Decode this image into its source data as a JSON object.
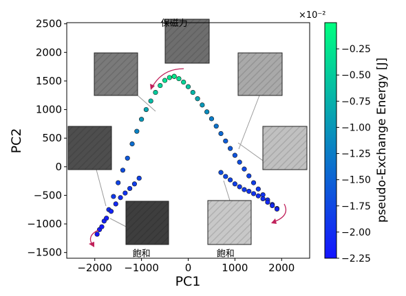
{
  "chart_data": {
    "type": "scatter",
    "xlabel": "PC1",
    "ylabel": "PC2",
    "xlim": [
      -2600,
      2600
    ],
    "ylim": [
      -1600,
      2520
    ],
    "x_ticks": [
      -2000,
      -1000,
      0,
      1000,
      2000
    ],
    "x_tick_labels": [
      "−2000",
      "−1000",
      "0",
      "1000",
      "2000"
    ],
    "y_ticks": [
      -1500,
      -1000,
      -500,
      0,
      500,
      1000,
      1500,
      2000,
      2500
    ],
    "y_tick_labels": [
      "−1500",
      "−1000",
      "−500",
      "0",
      "500",
      "1000",
      "1500",
      "2000",
      "2500"
    ],
    "grid": false,
    "colorbar": {
      "label": "pseudo-Exchange Energy [J]",
      "scale_label": "×10⁻²",
      "range": [
        -2.25,
        0
      ],
      "ticks": [
        -0.25,
        -0.5,
        -0.75,
        -1.0,
        -1.25,
        -1.5,
        -1.75,
        -2.0,
        -2.25
      ],
      "tick_labels": [
        "−0.25",
        "−0.50",
        "−0.75",
        "−1.00",
        "−1.25",
        "−1.50",
        "−1.75",
        "−2.00",
        "−2.25"
      ],
      "colors": [
        "#1414ff",
        "#00ff80"
      ]
    },
    "annotations": [
      {
        "text": "保磁力",
        "x": -300,
        "y": 2460
      },
      {
        "text": "飽和",
        "x": -1000,
        "y": -1570
      },
      {
        "text": "飽和",
        "x": 800,
        "y": -1570
      }
    ],
    "branches": [
      {
        "name": "",
        "x": [
          -1900,
          -1800,
          -1700,
          -1600,
          -1500,
          -1400,
          -1300,
          -1200,
          -1100,
          -1000,
          -900,
          -800,
          -700,
          -600,
          -500,
          -400,
          -300
        ],
        "y": [
          -1100,
          -950,
          -750,
          -520,
          -280,
          -60,
          150,
          400,
          620,
          830,
          1000,
          1150,
          1300,
          1420,
          1510,
          1560,
          1580
        ],
        "energy": [
          -2.2,
          -2.1,
          -2.0,
          -1.9,
          -1.8,
          -1.7,
          -1.6,
          -1.4,
          -1.2,
          -1.0,
          -0.85,
          -0.65,
          -0.5,
          -0.4,
          -0.3,
          -0.25,
          -0.2
        ]
      },
      {
        "name": "",
        "x": [
          -1950,
          -1850,
          -1750,
          -1650,
          -1550,
          -1450,
          -1350,
          -1250,
          -1150,
          -1050
        ],
        "y": [
          -1180,
          -1050,
          -900,
          -780,
          -650,
          -540,
          -460,
          -380,
          -300,
          -200
        ],
        "energy": [
          -2.25,
          -2.2,
          -2.15,
          -2.1,
          -2.05,
          -2.0,
          -1.95,
          -1.9,
          -1.85,
          -1.8
        ]
      },
      {
        "name": "",
        "x": [
          -300,
          -200,
          -100,
          0,
          100,
          200,
          300,
          400,
          500,
          600,
          700,
          800,
          900,
          1000,
          1100,
          1200,
          1300,
          1400,
          1500,
          1600,
          1700,
          1800,
          1900
        ],
        "y": [
          1580,
          1540,
          1480,
          1400,
          1300,
          1190,
          1080,
          960,
          840,
          710,
          580,
          450,
          320,
          200,
          80,
          -40,
          -160,
          -280,
          -390,
          -490,
          -580,
          -660,
          -730
        ],
        "energy": [
          -0.2,
          -0.3,
          -0.4,
          -0.55,
          -0.7,
          -0.85,
          -1.0,
          -1.1,
          -1.25,
          -1.35,
          -1.45,
          -1.55,
          -1.6,
          -1.65,
          -1.7,
          -1.75,
          -1.8,
          -1.85,
          -1.9,
          -1.95,
          -2.0,
          -2.0,
          -2.05
        ]
      },
      {
        "name": "",
        "x": [
          700,
          800,
          900,
          1000,
          1100,
          1200,
          1300,
          1400,
          1500,
          1600,
          1700,
          1800,
          1900
        ],
        "y": [
          -100,
          -170,
          -230,
          -300,
          -350,
          -400,
          -430,
          -470,
          -510,
          -560,
          -620,
          -680,
          -740
        ],
        "energy": [
          -1.7,
          -1.75,
          -1.8,
          -1.85,
          -1.9,
          -1.9,
          -1.95,
          -1.95,
          -2.0,
          -2.0,
          -2.05,
          -2.05,
          -2.1
        ]
      }
    ]
  }
}
